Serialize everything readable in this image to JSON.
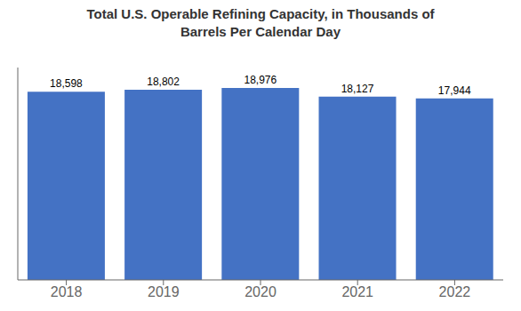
{
  "chart_data": {
    "type": "bar",
    "title": "Total U.S. Operable Refining Capacity, in Thousands of\nBarrels Per Calendar Day",
    "categories": [
      "2018",
      "2019",
      "2020",
      "2021",
      "2022"
    ],
    "values": [
      18598,
      18802,
      18976,
      18127,
      17944
    ],
    "value_labels": [
      "18,598",
      "18,802",
      "18,976",
      "18,127",
      "17,944"
    ],
    "color": "#4472C4",
    "ylim": [
      0,
      21000
    ],
    "grid": false,
    "data_labels": true,
    "tick_labels": "x"
  }
}
